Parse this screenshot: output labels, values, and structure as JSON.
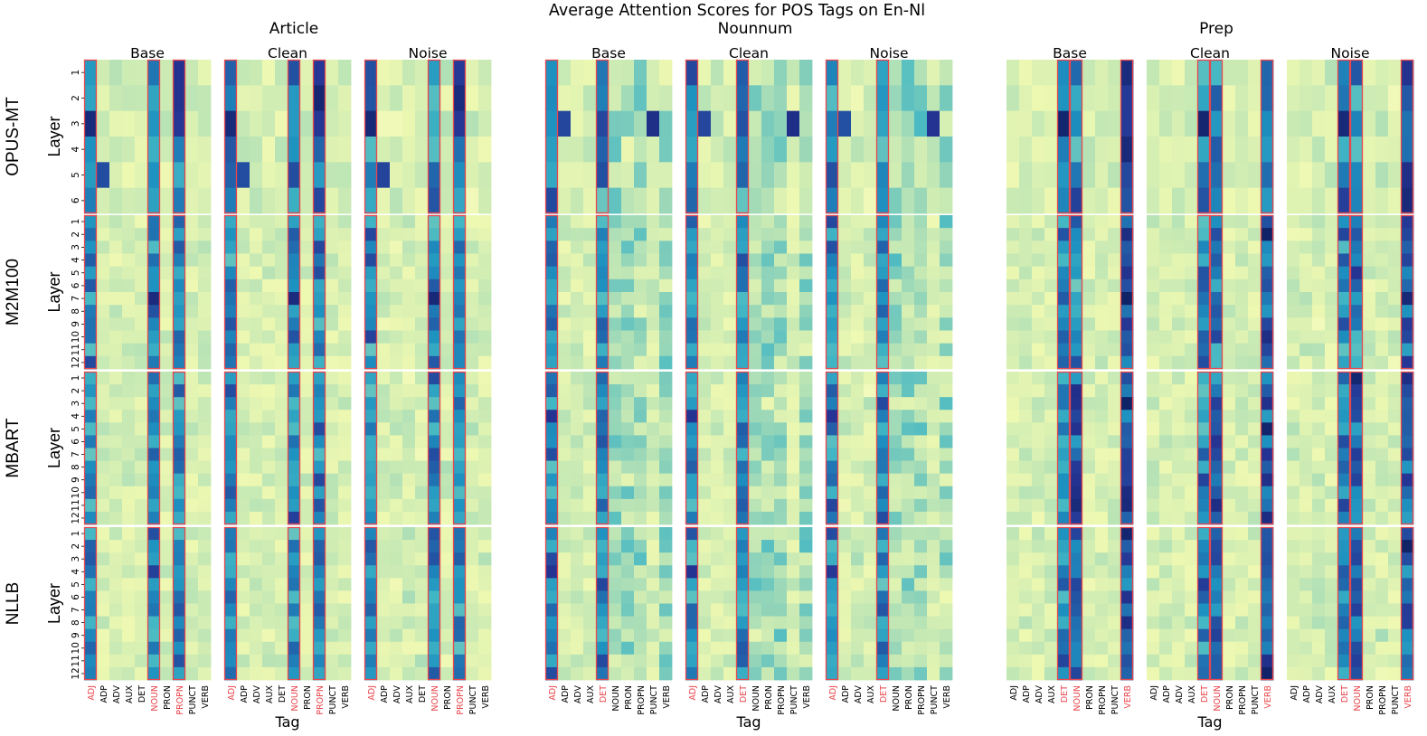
{
  "chart_data": {
    "type": "heatmap",
    "title": "Average Attention Scores for POS Tags on En-Nl",
    "xlabel": "Tag",
    "ylabel": "Layer",
    "groups": [
      {
        "name": "Article",
        "highlight": [
          "ADJ",
          "NOUN",
          "PROPN"
        ]
      },
      {
        "name": "Nounnum",
        "highlight": [
          "ADJ",
          "DET"
        ]
      },
      {
        "name": "Prep",
        "highlight": [
          "DET",
          "NOUN",
          "VERB"
        ]
      }
    ],
    "conditions": [
      "Base",
      "Clean",
      "Noise"
    ],
    "tags": [
      "ADJ",
      "ADP",
      "ADV",
      "AUX",
      "DET",
      "NOUN",
      "PRON",
      "PROPN",
      "PUNCT",
      "VERB"
    ],
    "models": [
      {
        "name": "OPUS-MT",
        "layers": [
          "1",
          "2",
          "3",
          "4",
          "5",
          "6"
        ]
      },
      {
        "name": "M2M100",
        "layers": [
          "1",
          "2",
          "3",
          "4",
          "5",
          "6",
          "7",
          "8",
          "9",
          "10",
          "11",
          "12"
        ]
      },
      {
        "name": "MBART",
        "layers": [
          "1",
          "2",
          "3",
          "4",
          "5",
          "6",
          "7",
          "8",
          "9",
          "10",
          "11",
          "12"
        ]
      },
      {
        "name": "NLLB",
        "layers": [
          "1",
          "2",
          "3",
          "4",
          "5",
          "6",
          "7",
          "8",
          "9",
          "10",
          "11",
          "12"
        ]
      }
    ],
    "colormap": "YlGnBu",
    "value_range": [
      0,
      1
    ],
    "highlight_color": "#e8474d"
  }
}
